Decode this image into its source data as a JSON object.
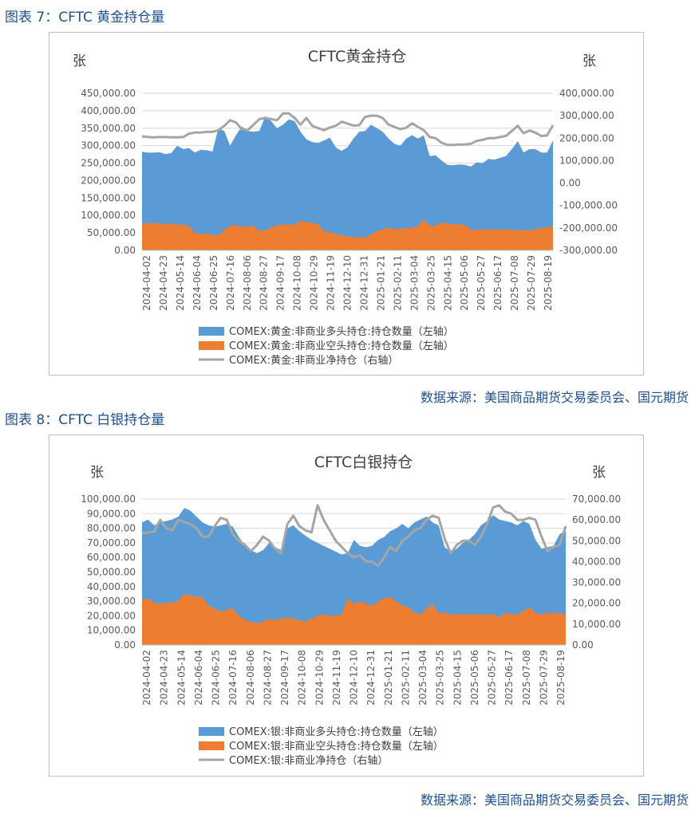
{
  "figures": [
    {
      "caption": "图表 7：CFTC 黄金持仓量",
      "source": "数据来源：美国商品期货交易委员会、国元期货"
    },
    {
      "caption": "图表 8：CFTC 白银持仓量",
      "source": "数据来源：美国商品期货交易委员会、国元期货"
    }
  ],
  "chart_data": [
    {
      "type": "area",
      "title": "CFTC黄金持仓",
      "left_unit": "张",
      "right_unit": "张",
      "left_ylim": [
        0,
        450000
      ],
      "left_ticks": [
        "450,000.00",
        "400,000.00",
        "350,000.00",
        "300,000.00",
        "250,000.00",
        "200,000.00",
        "150,000.00",
        "100,000.00",
        "50,000.00",
        "0.00"
      ],
      "right_ylim": [
        -300000,
        400000
      ],
      "right_ticks": [
        "400,000.00",
        "300,000.00",
        "200,000.00",
        "100,000.00",
        "0.00",
        "-100,000.00",
        "-200,000.00",
        "-300,000.00"
      ],
      "x_labels": [
        "2024-04-02",
        "2024-04-23",
        "2024-05-14",
        "2024-06-04",
        "2024-06-25",
        "2024-07-16",
        "2024-08-06",
        "2024-08-27",
        "2024-09-17",
        "2024-10-08",
        "2024-10-29",
        "2024-11-19",
        "2024-12-10",
        "2024-12-31",
        "2025-01-21",
        "2025-02-11",
        "2025-03-04",
        "2025-03-25",
        "2025-04-15",
        "2025-05-06",
        "2025-05-27",
        "2025-06-17",
        "2025-07-08",
        "2025-07-29",
        "2025-08-19"
      ],
      "gridlines": true,
      "legend_position": "bottom",
      "colors": {
        "long": "#5b9bd5",
        "short": "#ed7d31",
        "net": "#a5a5a5"
      },
      "series": [
        {
          "name": "COMEX:黄金:非商业多头持仓:持仓数量（左轴）",
          "axis": "left",
          "style": "area",
          "values": [
            282000,
            280000,
            280000,
            281000,
            276000,
            279000,
            300000,
            290000,
            293000,
            280000,
            288000,
            287000,
            283000,
            350000,
            342000,
            300000,
            330000,
            355000,
            342000,
            340000,
            342000,
            385000,
            370000,
            350000,
            360000,
            375000,
            370000,
            340000,
            318000,
            310000,
            308000,
            315000,
            323000,
            295000,
            285000,
            295000,
            320000,
            340000,
            342000,
            360000,
            350000,
            340000,
            320000,
            305000,
            300000,
            320000,
            330000,
            320000,
            330000,
            270000,
            272000,
            258000,
            245000,
            244000,
            246000,
            245000,
            240000,
            252000,
            250000,
            262000,
            260000,
            265000,
            270000,
            290000,
            313000,
            280000,
            290000,
            290000,
            280000,
            280000,
            315000
          ]
        },
        {
          "name": "COMEX:黄金:非商业空头持仓:持仓数量（左轴）",
          "axis": "left",
          "style": "area",
          "values": [
            78000,
            78000,
            77000,
            78000,
            75000,
            76000,
            73000,
            74000,
            70000,
            50000,
            48000,
            47000,
            45000,
            43000,
            58000,
            70000,
            72000,
            68000,
            68000,
            70000,
            55000,
            58000,
            65000,
            72000,
            73000,
            75000,
            73000,
            85000,
            80000,
            80000,
            75000,
            55000,
            52000,
            48000,
            42000,
            40000,
            38000,
            37000,
            37000,
            45000,
            55000,
            60000,
            65000,
            60000,
            62000,
            63000,
            65000,
            70000,
            88000,
            72000,
            70000,
            80000,
            77000,
            75000,
            74000,
            73000,
            60000,
            59000,
            60000,
            60000,
            60000,
            59000,
            60000,
            59000,
            58000,
            58000,
            57000,
            60000,
            64000,
            66000,
            68000
          ]
        },
        {
          "name": "COMEX:黄金:非商业净持仓（右轴）",
          "axis": "right",
          "style": "line",
          "values": [
            208000,
            205000,
            204000,
            205000,
            205000,
            204000,
            204000,
            205000,
            220000,
            225000,
            225000,
            228000,
            228000,
            235000,
            255000,
            280000,
            270000,
            240000,
            235000,
            260000,
            285000,
            290000,
            285000,
            280000,
            310000,
            310000,
            290000,
            260000,
            290000,
            255000,
            245000,
            235000,
            248000,
            255000,
            273000,
            265000,
            256000,
            258000,
            295000,
            300000,
            300000,
            290000,
            260000,
            250000,
            240000,
            246000,
            266000,
            250000,
            235000,
            205000,
            200000,
            180000,
            170000,
            170000,
            172000,
            172000,
            175000,
            188000,
            192000,
            200000,
            200000,
            205000,
            210000,
            232000,
            255000,
            222000,
            234000,
            225000,
            210000,
            212000,
            258000
          ]
        }
      ]
    },
    {
      "type": "area",
      "title": "CFTC白银持仓",
      "left_unit": "张",
      "right_unit": "张",
      "left_ylim": [
        0,
        100000
      ],
      "left_ticks": [
        "100,000.00",
        "90,000.00",
        "80,000.00",
        "70,000.00",
        "60,000.00",
        "50,000.00",
        "40,000.00",
        "30,000.00",
        "20,000.00",
        "10,000.00",
        "0.00"
      ],
      "right_ylim": [
        0,
        70000
      ],
      "right_ticks": [
        "70,000.00",
        "60,000.00",
        "50,000.00",
        "40,000.00",
        "30,000.00",
        "20,000.00",
        "10,000.00",
        "0.00"
      ],
      "x_labels": [
        "2024-04-02",
        "2024-04-23",
        "2024-05-14",
        "2024-06-04",
        "2024-06-25",
        "2024-07-16",
        "2024-08-06",
        "2024-08-27",
        "2024-09-17",
        "2024-10-08",
        "2024-10-29",
        "2024-11-19",
        "2024-12-10",
        "2024-12-31",
        "2025-01-21",
        "2025-02-11",
        "2025-03-04",
        "2025-03-25",
        "2025-04-15",
        "2025-05-06",
        "2025-05-27",
        "2025-06-17",
        "2025-07-08",
        "2025-07-29",
        "2025-08-19"
      ],
      "gridlines": true,
      "legend_position": "bottom",
      "colors": {
        "long": "#5b9bd5",
        "short": "#ed7d31",
        "net": "#a5a5a5"
      },
      "series": [
        {
          "name": "COMEX:银:非商业多头持仓:持仓数量（左轴）",
          "axis": "left",
          "style": "area",
          "values": [
            84000,
            86000,
            82000,
            84000,
            85000,
            86000,
            88000,
            94000,
            92000,
            88000,
            84000,
            82000,
            81000,
            82000,
            83000,
            81000,
            74000,
            68000,
            65000,
            63000,
            65000,
            70000,
            67000,
            65000,
            80000,
            82000,
            78000,
            75000,
            72000,
            70000,
            68000,
            66000,
            64000,
            62000,
            63000,
            72000,
            68000,
            67000,
            68000,
            72000,
            74000,
            78000,
            80000,
            83000,
            80000,
            84000,
            86000,
            88000,
            84000,
            82000,
            67000,
            64000,
            66000,
            70000,
            72000,
            76000,
            82000,
            85000,
            89000,
            86000,
            85000,
            84000,
            82000,
            85000,
            83000,
            72000,
            66000,
            67000,
            68000,
            76000,
            78000
          ]
        },
        {
          "name": "COMEX:银:非商业空头持仓:持仓数量（左轴）",
          "axis": "left",
          "style": "area",
          "values": [
            31000,
            32000,
            29000,
            28000,
            29000,
            29000,
            30000,
            35000,
            34000,
            33000,
            33000,
            27000,
            25000,
            23000,
            24000,
            25000,
            20000,
            17000,
            16000,
            15000,
            16000,
            18000,
            17000,
            18000,
            19000,
            18000,
            17000,
            16000,
            18000,
            20000,
            21000,
            20000,
            20000,
            21000,
            32000,
            28000,
            30000,
            28000,
            27000,
            30000,
            32000,
            33000,
            30000,
            27000,
            26000,
            22000,
            21000,
            25000,
            28000,
            22000,
            22000,
            21000,
            21000,
            21000,
            21000,
            21000,
            21000,
            21000,
            21000,
            19000,
            22000,
            21000,
            21000,
            23000,
            26000,
            22000,
            21000,
            22000,
            22000,
            22000,
            21000
          ]
        },
        {
          "name": "COMEX:银:非商业净持仓（右轴）",
          "axis": "right",
          "style": "line",
          "values": [
            53500,
            54000,
            54500,
            60000,
            56000,
            55000,
            60000,
            59000,
            58000,
            56000,
            52000,
            52000,
            57000,
            61000,
            60000,
            53000,
            50000,
            48000,
            45000,
            48000,
            52000,
            50000,
            46000,
            44000,
            58000,
            62000,
            57000,
            55000,
            54000,
            67000,
            60000,
            55000,
            50000,
            47000,
            44000,
            42000,
            43000,
            40000,
            40000,
            38000,
            42000,
            47000,
            45000,
            50000,
            52000,
            55000,
            56000,
            60000,
            62000,
            61000,
            51000,
            44000,
            48000,
            50000,
            50000,
            48000,
            52000,
            58000,
            66000,
            67000,
            64000,
            63000,
            60000,
            60000,
            61000,
            60000,
            52000,
            45000,
            47000,
            48000,
            57000
          ]
        }
      ]
    }
  ]
}
